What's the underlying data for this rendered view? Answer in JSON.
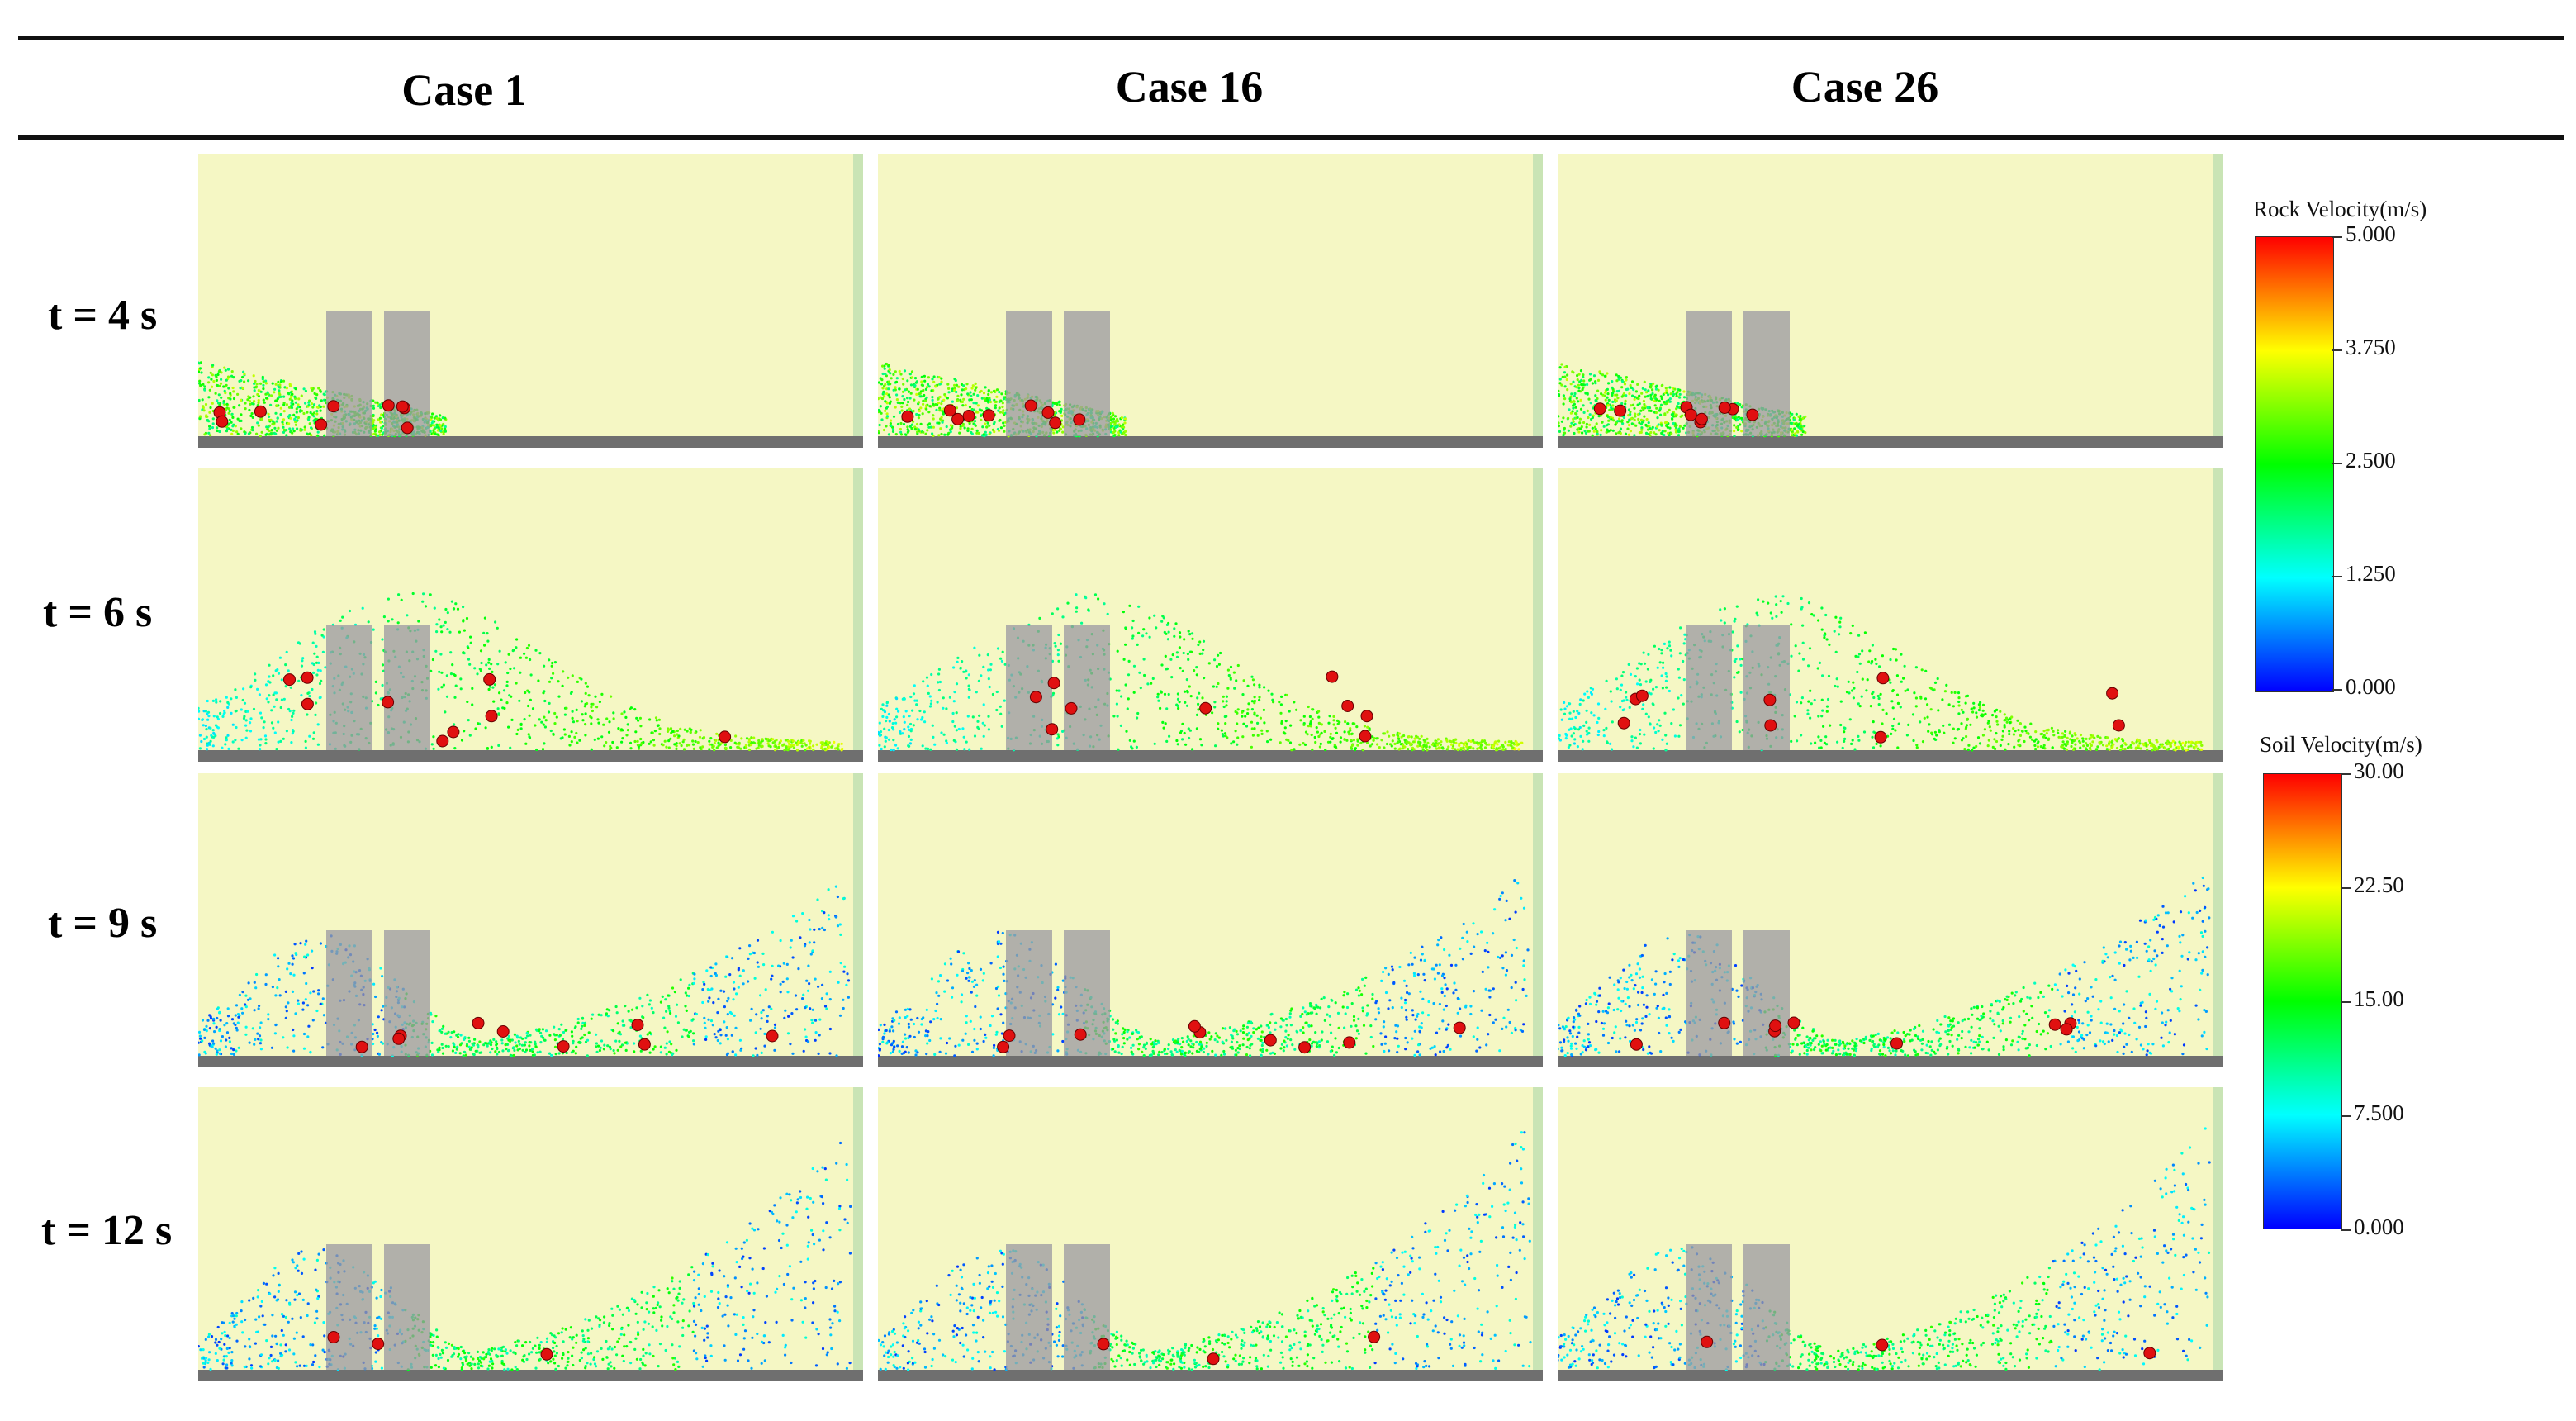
{
  "columns": [
    "Case 1",
    "Case 16",
    "Case 26"
  ],
  "rows": [
    "t = 4 s",
    "t = 6 s",
    "t = 9 s",
    "t = 12 s"
  ],
  "colorbars": {
    "rock": {
      "title": "Rock Velocity(m/s)",
      "ticks": [
        "5.000",
        "3.750",
        "2.500",
        "1.250",
        "0.000"
      ]
    },
    "soil": {
      "title": "Soil Velocity(m/s)",
      "ticks": [
        "30.00",
        "22.50",
        "15.00",
        "7.500",
        "0.000"
      ]
    }
  },
  "colors": {
    "background": "#f5f7c4",
    "ground": "#6f6f6f",
    "pillar": "#9a98a2",
    "rock": "#e01010",
    "scale": [
      "#0000ff",
      "#00ffff",
      "#00ff00",
      "#ffff00",
      "#ff0000"
    ]
  }
}
